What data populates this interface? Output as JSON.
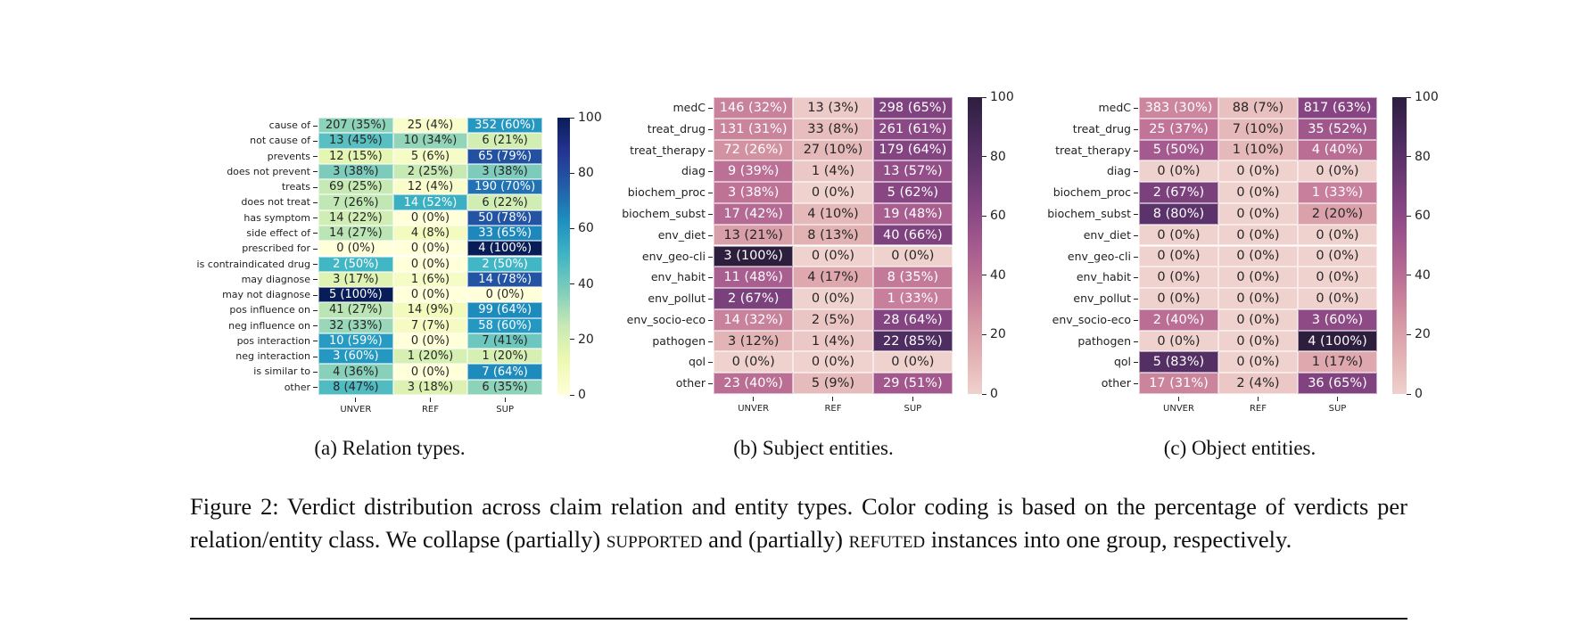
{
  "chart_data": [
    {
      "type": "heatmap",
      "subcaption": "(a) Relation types.",
      "colormap": "YlGnBu",
      "color_range": [
        0,
        100
      ],
      "colorbar_ticks": [
        "0",
        "20",
        "40",
        "60",
        "80",
        "100"
      ],
      "columns": [
        "UNVER",
        "REF",
        "SUP"
      ],
      "rows": [
        "cause of",
        "not cause of",
        "prevents",
        "does not prevent",
        "treats",
        "does not treat",
        "has symptom",
        "side effect of",
        "prescribed for",
        "is contraindicated drug",
        "may diagnose",
        "may not diagnose",
        "pos influence on",
        "neg influence on",
        "pos interaction",
        "neg interaction",
        "is similar to",
        "other"
      ],
      "counts": [
        [
          207,
          25,
          352
        ],
        [
          13,
          10,
          6
        ],
        [
          12,
          5,
          65
        ],
        [
          3,
          2,
          3
        ],
        [
          69,
          12,
          190
        ],
        [
          7,
          14,
          6
        ],
        [
          14,
          0,
          50
        ],
        [
          14,
          4,
          33
        ],
        [
          0,
          0,
          4
        ],
        [
          2,
          0,
          2
        ],
        [
          3,
          1,
          14
        ],
        [
          5,
          0,
          0
        ],
        [
          41,
          14,
          99
        ],
        [
          32,
          7,
          58
        ],
        [
          10,
          0,
          7
        ],
        [
          3,
          1,
          1
        ],
        [
          4,
          0,
          7
        ],
        [
          8,
          3,
          6
        ]
      ],
      "percents": [
        [
          35,
          4,
          60
        ],
        [
          45,
          34,
          21
        ],
        [
          15,
          6,
          79
        ],
        [
          38,
          25,
          38
        ],
        [
          25,
          4,
          70
        ],
        [
          26,
          52,
          22
        ],
        [
          22,
          0,
          78
        ],
        [
          27,
          8,
          65
        ],
        [
          0,
          0,
          100
        ],
        [
          50,
          0,
          50
        ],
        [
          17,
          6,
          78
        ],
        [
          100,
          0,
          0
        ],
        [
          27,
          9,
          64
        ],
        [
          33,
          7,
          60
        ],
        [
          59,
          0,
          41
        ],
        [
          60,
          20,
          20
        ],
        [
          36,
          0,
          64
        ],
        [
          47,
          18,
          35
        ]
      ]
    },
    {
      "type": "heatmap",
      "subcaption": "(b) Subject entities.",
      "colormap": "cubehelix-pink-purple",
      "color_range": [
        0,
        100
      ],
      "colorbar_ticks": [
        "0",
        "20",
        "40",
        "60",
        "80",
        "100"
      ],
      "columns": [
        "UNVER",
        "REF",
        "SUP"
      ],
      "rows": [
        "medC",
        "treat_drug",
        "treat_therapy",
        "diag",
        "biochem_proc",
        "biochem_subst",
        "env_diet",
        "env_geo-cli",
        "env_habit",
        "env_pollut",
        "env_socio-eco",
        "pathogen",
        "qol",
        "other"
      ],
      "counts": [
        [
          146,
          13,
          298
        ],
        [
          131,
          33,
          261
        ],
        [
          72,
          27,
          179
        ],
        [
          9,
          1,
          13
        ],
        [
          3,
          0,
          5
        ],
        [
          17,
          4,
          19
        ],
        [
          13,
          8,
          40
        ],
        [
          3,
          0,
          0
        ],
        [
          11,
          4,
          8
        ],
        [
          2,
          0,
          1
        ],
        [
          14,
          2,
          28
        ],
        [
          3,
          1,
          22
        ],
        [
          0,
          0,
          0
        ],
        [
          23,
          5,
          29
        ]
      ],
      "percents": [
        [
          32,
          3,
          65
        ],
        [
          31,
          8,
          61
        ],
        [
          26,
          10,
          64
        ],
        [
          39,
          4,
          57
        ],
        [
          38,
          0,
          62
        ],
        [
          42,
          10,
          48
        ],
        [
          21,
          13,
          66
        ],
        [
          100,
          0,
          0
        ],
        [
          48,
          17,
          35
        ],
        [
          67,
          0,
          33
        ],
        [
          32,
          5,
          64
        ],
        [
          12,
          4,
          85
        ],
        [
          0,
          0,
          0
        ],
        [
          40,
          9,
          51
        ]
      ]
    },
    {
      "type": "heatmap",
      "subcaption": "(c) Object entities.",
      "colormap": "cubehelix-pink-purple",
      "color_range": [
        0,
        100
      ],
      "colorbar_ticks": [
        "0",
        "20",
        "40",
        "60",
        "80",
        "100"
      ],
      "columns": [
        "UNVER",
        "REF",
        "SUP"
      ],
      "rows": [
        "medC",
        "treat_drug",
        "treat_therapy",
        "diag",
        "biochem_proc",
        "biochem_subst",
        "env_diet",
        "env_geo-cli",
        "env_habit",
        "env_pollut",
        "env_socio-eco",
        "pathogen",
        "qol",
        "other"
      ],
      "counts": [
        [
          383,
          88,
          817
        ],
        [
          25,
          7,
          35
        ],
        [
          5,
          1,
          4
        ],
        [
          0,
          0,
          0
        ],
        [
          2,
          0,
          1
        ],
        [
          8,
          0,
          2
        ],
        [
          0,
          0,
          0
        ],
        [
          0,
          0,
          0
        ],
        [
          0,
          0,
          0
        ],
        [
          0,
          0,
          0
        ],
        [
          2,
          0,
          3
        ],
        [
          0,
          0,
          4
        ],
        [
          5,
          0,
          1
        ],
        [
          17,
          2,
          36
        ]
      ],
      "percents": [
        [
          30,
          7,
          63
        ],
        [
          37,
          10,
          52
        ],
        [
          50,
          10,
          40
        ],
        [
          0,
          0,
          0
        ],
        [
          67,
          0,
          33
        ],
        [
          80,
          0,
          20
        ],
        [
          0,
          0,
          0
        ],
        [
          0,
          0,
          0
        ],
        [
          0,
          0,
          0
        ],
        [
          0,
          0,
          0
        ],
        [
          40,
          0,
          60
        ],
        [
          0,
          0,
          100
        ],
        [
          83,
          0,
          17
        ],
        [
          31,
          4,
          65
        ]
      ]
    }
  ],
  "caption": {
    "part1": "Figure 2: Verdict distribution across claim relation and entity types. Color coding is based on the percentage of verdicts per relation/entity class. We collapse (partially) ",
    "supported": "supported",
    "part2": " and (partially) ",
    "refuted": "refuted",
    "part3": " instances into one group, respectively."
  }
}
